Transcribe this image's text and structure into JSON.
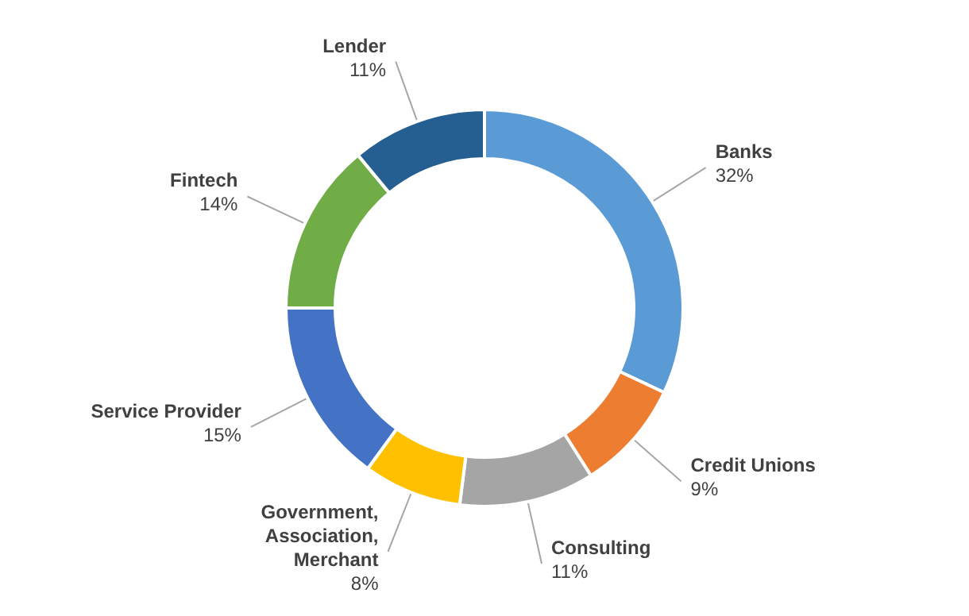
{
  "chart_data": {
    "type": "donut",
    "categories": [
      "Banks",
      "Credit Unions",
      "Consulting",
      "Government, Association, Merchant",
      "Service Provider",
      "Fintech",
      "Lender"
    ],
    "values": [
      32,
      9,
      11,
      8,
      15,
      14,
      11
    ],
    "value_labels": [
      "32%",
      "9%",
      "11%",
      "8%",
      "15%",
      "14%",
      "11%"
    ],
    "colors": [
      "#5b9bd5",
      "#ed7d31",
      "#a5a5a5",
      "#ffc000",
      "#4472c4",
      "#70ad47",
      "#255e91"
    ]
  }
}
